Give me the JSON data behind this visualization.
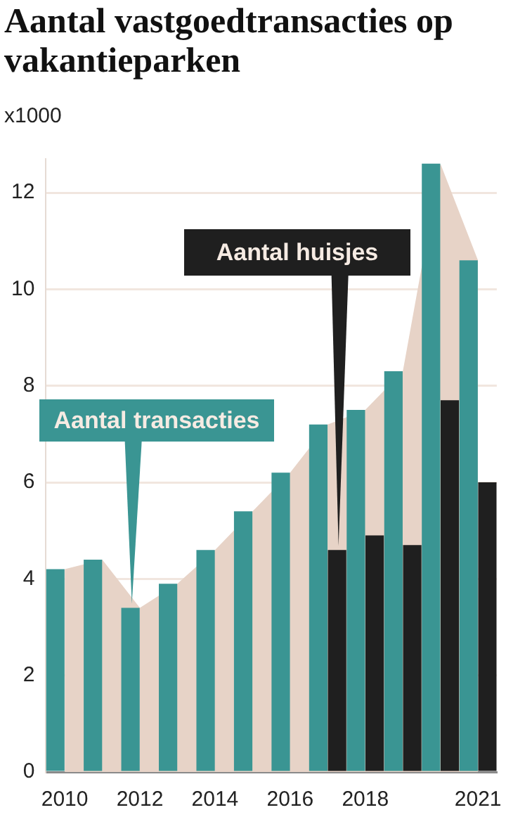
{
  "chart_data": {
    "type": "bar",
    "title": "Aantal vastgoedtransacties op vakantieparken",
    "ylabel": "x1000",
    "categories": [
      "2010",
      null,
      "2012",
      null,
      "2014",
      null,
      "2016",
      null,
      "2018",
      null,
      null,
      "2021"
    ],
    "series": [
      {
        "name": "Aantal transacties",
        "color": "#3a9593",
        "values": [
          4.2,
          4.4,
          3.4,
          3.9,
          4.6,
          5.4,
          6.2,
          7.2,
          7.5,
          8.3,
          12.6,
          10.6
        ]
      },
      {
        "name": "Aantal huisjes",
        "color": "#1f1f1f",
        "values": [
          null,
          null,
          null,
          null,
          null,
          null,
          null,
          4.6,
          4.9,
          4.7,
          7.7,
          6.0
        ]
      },
      {
        "type": "area",
        "color": "#e7d3c7",
        "values": [
          4.2,
          4.4,
          3.4,
          3.9,
          4.6,
          5.4,
          6.2,
          7.2,
          7.5,
          8.3,
          12.6,
          10.6
        ]
      }
    ],
    "ylim": [
      0,
      12.7
    ],
    "yticks": [
      0,
      2,
      4,
      6,
      8,
      10,
      12
    ],
    "grid": "y"
  }
}
